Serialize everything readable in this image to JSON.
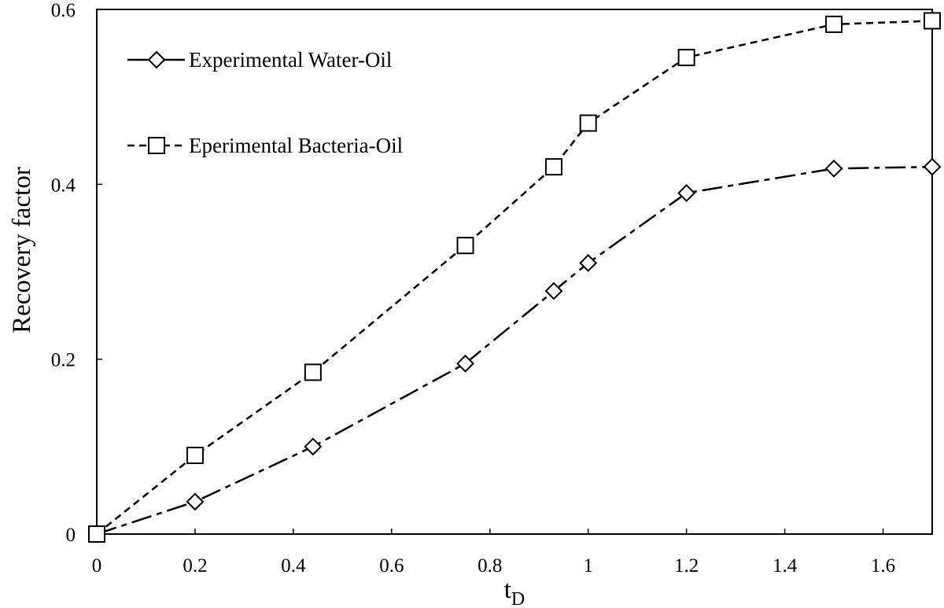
{
  "chart_data": {
    "type": "line",
    "title": "",
    "xlabel": "t",
    "xlabel_subscript": "D",
    "ylabel": "Recovery factor",
    "xlim": [
      0,
      1.7
    ],
    "ylim": [
      0,
      0.6
    ],
    "x_ticks": [
      0,
      0.2,
      0.4,
      0.6,
      0.8,
      1.0,
      1.2,
      1.4,
      1.6
    ],
    "x_tick_labels": [
      "0",
      "0.2",
      "0.4",
      "0.6",
      "0.8",
      "1",
      "1.2",
      "1.4",
      "1.6"
    ],
    "y_ticks": [
      0,
      0.2,
      0.4,
      0.6
    ],
    "y_tick_labels": [
      "0",
      "0.2",
      "0.4",
      "0.6"
    ],
    "grid": false,
    "legend_position": "top-left",
    "series": [
      {
        "name": "Experimental Water-Oil",
        "marker": "diamond",
        "line_style": "dash-dot",
        "x": [
          0,
          0.2,
          0.44,
          0.75,
          0.93,
          1.0,
          1.2,
          1.5,
          1.7
        ],
        "y": [
          0,
          0.037,
          0.1,
          0.195,
          0.278,
          0.31,
          0.39,
          0.418,
          0.42
        ]
      },
      {
        "name": "Eperimental Bacteria-Oil",
        "marker": "square",
        "line_style": "dashed",
        "x": [
          0,
          0.2,
          0.44,
          0.75,
          0.93,
          1.0,
          1.2,
          1.5,
          1.7
        ],
        "y": [
          0,
          0.09,
          0.185,
          0.33,
          0.42,
          0.47,
          0.545,
          0.583,
          0.587
        ]
      }
    ]
  }
}
